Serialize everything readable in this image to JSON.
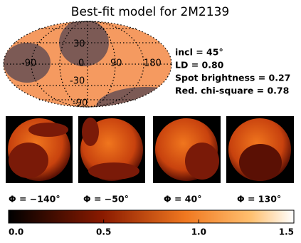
{
  "title": "Best-fit model for 2M2139",
  "map": {
    "labels": [
      "30",
      "-90",
      "0",
      "90",
      "180",
      "-30",
      "-90"
    ]
  },
  "parameters": [
    "incl =  45°",
    "LD = 0.80",
    "Spot brightness = 0.27",
    "Red. chi-square = 0.78"
  ],
  "phases": [
    "Φ = −140°",
    "Φ = −50°",
    "Φ = 40°",
    "Φ = 130°"
  ],
  "colorbar": {
    "lim": [
      0,
      1.5
    ],
    "ticks": [
      {
        "value": 0,
        "label": "0.0"
      },
      0.5,
      {
        "value": 1,
        "label": "1.0"
      },
      1.5
    ]
  }
}
